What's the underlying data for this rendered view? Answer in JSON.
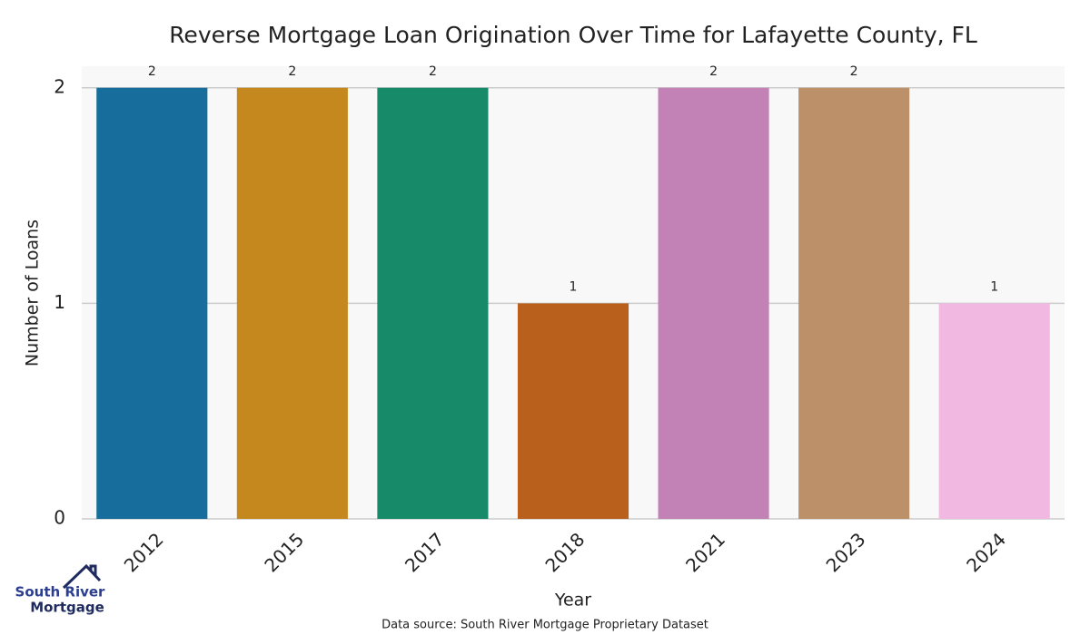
{
  "chart_data": {
    "type": "bar",
    "title": "Reverse Mortgage Loan Origination Over Time for Lafayette County, FL",
    "x_label": "Year",
    "y_label": "Number of Loans",
    "categories": [
      "2012",
      "2015",
      "2017",
      "2018",
      "2021",
      "2023",
      "2024"
    ],
    "values": [
      2,
      2,
      2,
      1,
      2,
      2,
      1
    ],
    "colors": [
      "#176d9c",
      "#c4881f",
      "#168a69",
      "#b9601d",
      "#c382b6",
      "#bc9169",
      "#f1b8e1"
    ],
    "ylim": [
      0,
      2.1
    ],
    "yticks": [
      0,
      1,
      2
    ],
    "grid": true,
    "source": "Data source: South River Mortgage Proprietary Dataset"
  },
  "logo": {
    "line1": "South River",
    "line2": "Mortgage"
  }
}
